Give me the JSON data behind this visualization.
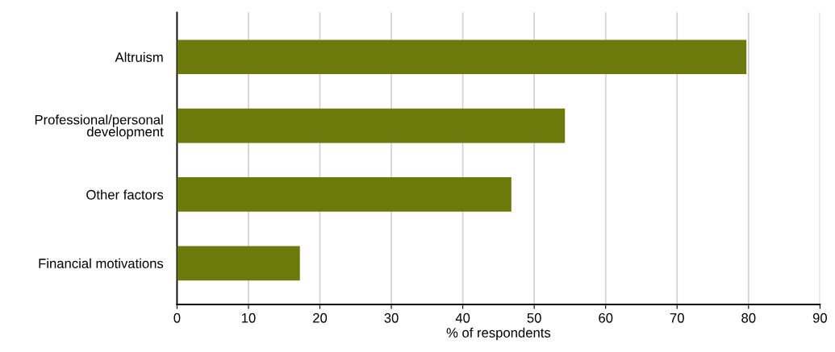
{
  "chart_data": {
    "type": "bar",
    "orientation": "horizontal",
    "xlabel": "% of respondents",
    "categories": [
      "Altruism",
      "Professional/personal\ndevelopment",
      "Other factors",
      "Financial motivations"
    ],
    "values": [
      79.7,
      54.3,
      46.8,
      17.2
    ],
    "color": "#6b7a0b",
    "xlim": [
      0,
      90
    ],
    "xticks": [
      0,
      10,
      20,
      30,
      40,
      50,
      60,
      70,
      80,
      90
    ],
    "grid": "x",
    "legend": false
  }
}
